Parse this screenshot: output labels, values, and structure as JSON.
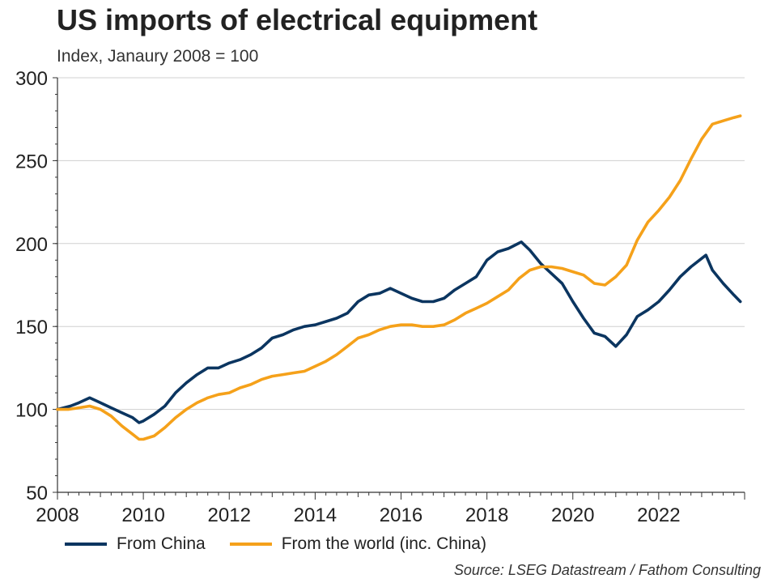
{
  "title": "US imports of electrical equipment",
  "subtitle": "Index, Janaury 2008 = 100",
  "source": "Source: LSEG Datastream / Fathom Consulting",
  "chart_data": {
    "type": "line",
    "ylim": [
      50,
      300
    ],
    "xlim": [
      2008,
      2024
    ],
    "yticks": [
      50,
      100,
      150,
      200,
      250,
      300
    ],
    "xticks": [
      2008,
      2010,
      2012,
      2014,
      2016,
      2018,
      2020,
      2022
    ],
    "grid": true,
    "legend_position": "bottom",
    "series": [
      {
        "name": "From China",
        "color": "#0b3560",
        "points": [
          [
            2008.0,
            100
          ],
          [
            2008.3,
            102
          ],
          [
            2008.5,
            104
          ],
          [
            2008.75,
            107
          ],
          [
            2009.0,
            104
          ],
          [
            2009.25,
            101
          ],
          [
            2009.5,
            98
          ],
          [
            2009.75,
            95
          ],
          [
            2009.9,
            92
          ],
          [
            2010.0,
            93
          ],
          [
            2010.25,
            97
          ],
          [
            2010.5,
            102
          ],
          [
            2010.75,
            110
          ],
          [
            2011.0,
            116
          ],
          [
            2011.25,
            121
          ],
          [
            2011.5,
            125
          ],
          [
            2011.75,
            125
          ],
          [
            2012.0,
            128
          ],
          [
            2012.25,
            130
          ],
          [
            2012.5,
            133
          ],
          [
            2012.75,
            137
          ],
          [
            2013.0,
            143
          ],
          [
            2013.25,
            145
          ],
          [
            2013.5,
            148
          ],
          [
            2013.75,
            150
          ],
          [
            2014.0,
            151
          ],
          [
            2014.25,
            153
          ],
          [
            2014.5,
            155
          ],
          [
            2014.75,
            158
          ],
          [
            2015.0,
            165
          ],
          [
            2015.25,
            169
          ],
          [
            2015.5,
            170
          ],
          [
            2015.75,
            173
          ],
          [
            2016.0,
            170
          ],
          [
            2016.25,
            167
          ],
          [
            2016.5,
            165
          ],
          [
            2016.75,
            165
          ],
          [
            2017.0,
            167
          ],
          [
            2017.25,
            172
          ],
          [
            2017.5,
            176
          ],
          [
            2017.75,
            180
          ],
          [
            2018.0,
            190
          ],
          [
            2018.25,
            195
          ],
          [
            2018.5,
            197
          ],
          [
            2018.8,
            201
          ],
          [
            2019.0,
            196
          ],
          [
            2019.25,
            188
          ],
          [
            2019.5,
            182
          ],
          [
            2019.75,
            176
          ],
          [
            2020.0,
            165
          ],
          [
            2020.25,
            155
          ],
          [
            2020.5,
            146
          ],
          [
            2020.75,
            144
          ],
          [
            2021.0,
            138
          ],
          [
            2021.25,
            145
          ],
          [
            2021.5,
            156
          ],
          [
            2021.75,
            160
          ],
          [
            2022.0,
            165
          ],
          [
            2022.25,
            172
          ],
          [
            2022.5,
            180
          ],
          [
            2022.75,
            186
          ],
          [
            2023.0,
            191
          ],
          [
            2023.1,
            193
          ],
          [
            2023.25,
            184
          ],
          [
            2023.5,
            176
          ],
          [
            2023.75,
            169
          ],
          [
            2023.9,
            165
          ]
        ]
      },
      {
        "name": "From the world (inc. China)",
        "color": "#f5a11a",
        "points": [
          [
            2008.0,
            100
          ],
          [
            2008.25,
            100
          ],
          [
            2008.5,
            101
          ],
          [
            2008.75,
            102
          ],
          [
            2009.0,
            100
          ],
          [
            2009.25,
            96
          ],
          [
            2009.5,
            90
          ],
          [
            2009.75,
            85
          ],
          [
            2009.9,
            82
          ],
          [
            2010.0,
            82
          ],
          [
            2010.25,
            84
          ],
          [
            2010.5,
            89
          ],
          [
            2010.75,
            95
          ],
          [
            2011.0,
            100
          ],
          [
            2011.25,
            104
          ],
          [
            2011.5,
            107
          ],
          [
            2011.75,
            109
          ],
          [
            2012.0,
            110
          ],
          [
            2012.25,
            113
          ],
          [
            2012.5,
            115
          ],
          [
            2012.75,
            118
          ],
          [
            2013.0,
            120
          ],
          [
            2013.25,
            121
          ],
          [
            2013.5,
            122
          ],
          [
            2013.75,
            123
          ],
          [
            2014.0,
            126
          ],
          [
            2014.25,
            129
          ],
          [
            2014.5,
            133
          ],
          [
            2014.75,
            138
          ],
          [
            2015.0,
            143
          ],
          [
            2015.25,
            145
          ],
          [
            2015.5,
            148
          ],
          [
            2015.75,
            150
          ],
          [
            2016.0,
            151
          ],
          [
            2016.25,
            151
          ],
          [
            2016.5,
            150
          ],
          [
            2016.75,
            150
          ],
          [
            2017.0,
            151
          ],
          [
            2017.25,
            154
          ],
          [
            2017.5,
            158
          ],
          [
            2017.75,
            161
          ],
          [
            2018.0,
            164
          ],
          [
            2018.25,
            168
          ],
          [
            2018.5,
            172
          ],
          [
            2018.75,
            179
          ],
          [
            2019.0,
            184
          ],
          [
            2019.25,
            186
          ],
          [
            2019.5,
            186
          ],
          [
            2019.75,
            185
          ],
          [
            2020.0,
            183
          ],
          [
            2020.25,
            181
          ],
          [
            2020.5,
            176
          ],
          [
            2020.75,
            175
          ],
          [
            2021.0,
            180
          ],
          [
            2021.25,
            187
          ],
          [
            2021.5,
            202
          ],
          [
            2021.75,
            213
          ],
          [
            2022.0,
            220
          ],
          [
            2022.25,
            228
          ],
          [
            2022.5,
            238
          ],
          [
            2022.75,
            251
          ],
          [
            2023.0,
            263
          ],
          [
            2023.25,
            272
          ],
          [
            2023.5,
            274
          ],
          [
            2023.75,
            276
          ],
          [
            2023.9,
            277
          ]
        ]
      }
    ]
  }
}
